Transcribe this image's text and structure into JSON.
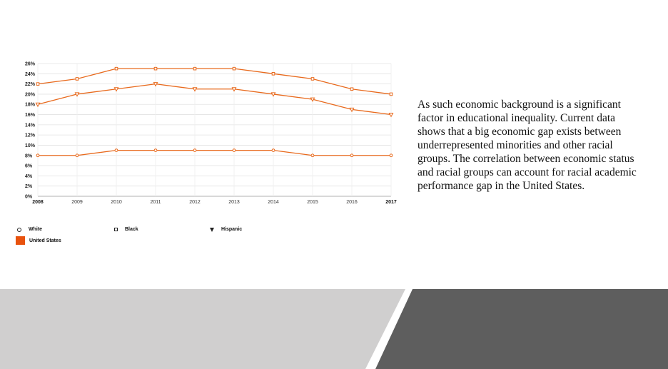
{
  "chart_data": {
    "type": "line",
    "x": [
      "2008",
      "2009",
      "2010",
      "2011",
      "2012",
      "2013",
      "2014",
      "2015",
      "2016",
      "2017"
    ],
    "series": [
      {
        "name": "White",
        "marker": "circle",
        "values": [
          8,
          8,
          9,
          9,
          9,
          9,
          9,
          8,
          8,
          8
        ]
      },
      {
        "name": "Black",
        "marker": "square",
        "values": [
          22,
          23,
          25,
          25,
          25,
          25,
          24,
          23,
          21,
          20
        ]
      },
      {
        "name": "Hispanic",
        "marker": "triangle-down",
        "values": [
          18,
          20,
          21,
          22,
          21,
          21,
          20,
          19,
          17,
          16
        ]
      }
    ],
    "ylim": [
      0,
      26
    ],
    "ytick_values": [
      0,
      2,
      4,
      6,
      8,
      10,
      12,
      14,
      16,
      18,
      20,
      22,
      24,
      26
    ],
    "ytick_labels": [
      "0%",
      "2%",
      "4%",
      "6%",
      "8%",
      "10%",
      "12%",
      "14%",
      "16%",
      "18%",
      "20%",
      "22%",
      "24%",
      "26%"
    ],
    "bold_x_labels": [
      "2008",
      "2017"
    ],
    "grid": true,
    "legend_placement": "bottom",
    "region_label": "United States",
    "line_color": "#e8691c",
    "marker_fill": "#ffffff"
  },
  "legend": {
    "white": "White",
    "black": "Black",
    "hispanic": "Hispanic",
    "region": "United States",
    "region_color": "#e8520e"
  },
  "text": {
    "paragraph": "As such economic background is a significant factor in educational inequality. Current data shows that a big economic gap exists between underrepresented minorities and other racial groups. The correlation between economic status and racial groups can account for racial academic performance gap in the United States."
  },
  "footer": {
    "left_color": "#d0cfcf",
    "right_color": "#5e5e5e",
    "divider_color": "#ffffff"
  }
}
